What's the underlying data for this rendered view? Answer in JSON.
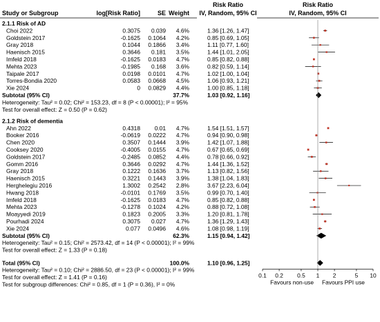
{
  "chart_data": {
    "type": "forest",
    "header": {
      "col_label_top": "Risk Ratio",
      "col_label_top_right": "Risk Ratio",
      "study": "Study or Subgroup",
      "log_rr": "log[Risk Ratio]",
      "se": "SE",
      "weight": "Weight",
      "ci": "IV, Random, 95% CI",
      "plot_ci": "IV, Random, 95% CI"
    },
    "axis": {
      "scale": "log",
      "ticks": [
        0.1,
        0.2,
        0.5,
        1,
        2,
        5,
        10
      ],
      "tick_labels": [
        "0.1",
        "0.2",
        "0.5",
        "1",
        "2",
        "5",
        "10"
      ],
      "favours_left": "Favours non-use",
      "favours_right": "Favours PPI use"
    },
    "groups": [
      {
        "title": "2.1.1 Risk of AD",
        "studies": [
          {
            "name": "Choi 2022",
            "log_rr": "0.3075",
            "se": "0.039",
            "weight": "4.6%",
            "ci_text": "1.36 [1.26, 1.47]",
            "rr": 1.36,
            "lo": 1.26,
            "hi": 1.47
          },
          {
            "name": "Goldstein 2017",
            "log_rr": "-0.1625",
            "se": "0.1064",
            "weight": "4.2%",
            "ci_text": "0.85 [0.69, 1.05]",
            "rr": 0.85,
            "lo": 0.69,
            "hi": 1.05
          },
          {
            "name": "Gray 2018",
            "log_rr": "0.1044",
            "se": "0.1866",
            "weight": "3.4%",
            "ci_text": "1.11 [0.77, 1.60]",
            "rr": 1.11,
            "lo": 0.77,
            "hi": 1.6
          },
          {
            "name": "Haenisch 2015",
            "log_rr": "0.3646",
            "se": "0.181",
            "weight": "3.5%",
            "ci_text": "1.44 [1.01, 2.05]",
            "rr": 1.44,
            "lo": 1.01,
            "hi": 2.05
          },
          {
            "name": "Imfeld 2018",
            "log_rr": "-0.1625",
            "se": "0.0183",
            "weight": "4.7%",
            "ci_text": "0.85 [0.82, 0.88]",
            "rr": 0.85,
            "lo": 0.82,
            "hi": 0.88
          },
          {
            "name": "Mehta 2023",
            "log_rr": "-0.1985",
            "se": "0.168",
            "weight": "3.6%",
            "ci_text": "0.82 [0.59, 1.14]",
            "rr": 0.82,
            "lo": 0.59,
            "hi": 1.14
          },
          {
            "name": "Taipale 2017",
            "log_rr": "0.0198",
            "se": "0.0101",
            "weight": "4.7%",
            "ci_text": "1.02 [1.00, 1.04]",
            "rr": 1.02,
            "lo": 1.0,
            "hi": 1.04
          },
          {
            "name": "Torres-Bondia 2020",
            "log_rr": "0.0583",
            "se": "0.0668",
            "weight": "4.5%",
            "ci_text": "1.06 [0.93, 1.21]",
            "rr": 1.06,
            "lo": 0.93,
            "hi": 1.21
          },
          {
            "name": "Xie 2024",
            "log_rr": "0",
            "se": "0.0829",
            "weight": "4.4%",
            "ci_text": "1.00 [0.85, 1.18]",
            "rr": 1.0,
            "lo": 0.85,
            "hi": 1.18
          }
        ],
        "subtotal": {
          "label": "Subtotal (95% CI)",
          "weight": "37.7%",
          "ci_text": "1.03 [0.92, 1.16]",
          "rr": 1.03,
          "lo": 0.92,
          "hi": 1.16
        },
        "heterogeneity": "Heterogeneity: Tau² = 0.02; Chi² = 153.23, df = 8 (P < 0.00001); I² = 95%",
        "overall_effect": "Test for overall effect: Z = 0.50 (P = 0.62)"
      },
      {
        "title": "2.1.2 Risk of dementia",
        "studies": [
          {
            "name": "Ahn 2022",
            "log_rr": "0.4318",
            "se": "0.01",
            "weight": "4.7%",
            "ci_text": "1.54 [1.51, 1.57]",
            "rr": 1.54,
            "lo": 1.51,
            "hi": 1.57
          },
          {
            "name": "Booker 2016",
            "log_rr": "-0.0619",
            "se": "0.0222",
            "weight": "4.7%",
            "ci_text": "0.94 [0.90, 0.98]",
            "rr": 0.94,
            "lo": 0.9,
            "hi": 0.98
          },
          {
            "name": "Chen 2020",
            "log_rr": "0.3507",
            "se": "0.1444",
            "weight": "3.9%",
            "ci_text": "1.42 [1.07, 1.88]",
            "rr": 1.42,
            "lo": 1.07,
            "hi": 1.88
          },
          {
            "name": "Cooksey 2020",
            "log_rr": "-0.4005",
            "se": "0.0155",
            "weight": "4.7%",
            "ci_text": "0.67 [0.65, 0.69]",
            "rr": 0.67,
            "lo": 0.65,
            "hi": 0.69
          },
          {
            "name": "Goldstein 2017",
            "log_rr": "-0.2485",
            "se": "0.0852",
            "weight": "4.4%",
            "ci_text": "0.78 [0.66, 0.92]",
            "rr": 0.78,
            "lo": 0.66,
            "hi": 0.92
          },
          {
            "name": "Gomm 2016",
            "log_rr": "0.3646",
            "se": "0.0292",
            "weight": "4.7%",
            "ci_text": "1.44 [1.36, 1.52]",
            "rr": 1.44,
            "lo": 1.36,
            "hi": 1.52
          },
          {
            "name": "Gray 2018",
            "log_rr": "0.1222",
            "se": "0.1636",
            "weight": "3.7%",
            "ci_text": "1.13 [0.82, 1.56]",
            "rr": 1.13,
            "lo": 0.82,
            "hi": 1.56
          },
          {
            "name": "Haenisch 2015",
            "log_rr": "0.3221",
            "se": "0.1443",
            "weight": "3.9%",
            "ci_text": "1.38 [1.04, 1.83]",
            "rr": 1.38,
            "lo": 1.04,
            "hi": 1.83
          },
          {
            "name": "Herghelegiu 2016",
            "log_rr": "1.3002",
            "se": "0.2542",
            "weight": "2.8%",
            "ci_text": "3.67 [2.23, 6.04]",
            "rr": 3.67,
            "lo": 2.23,
            "hi": 6.04
          },
          {
            "name": "Hwang 2018",
            "log_rr": "-0.0101",
            "se": "0.1769",
            "weight": "3.5%",
            "ci_text": "0.99 [0.70, 1.40]",
            "rr": 0.99,
            "lo": 0.7,
            "hi": 1.4
          },
          {
            "name": "Imfeld 2018",
            "log_rr": "-0.1625",
            "se": "0.0183",
            "weight": "4.7%",
            "ci_text": "0.85 [0.82, 0.88]",
            "rr": 0.85,
            "lo": 0.82,
            "hi": 0.88
          },
          {
            "name": "Mehta 2023",
            "log_rr": "-0.1278",
            "se": "0.1024",
            "weight": "4.2%",
            "ci_text": "0.88 [0.72, 1.08]",
            "rr": 0.88,
            "lo": 0.72,
            "hi": 1.08
          },
          {
            "name": "Moayyedi 2019",
            "log_rr": "0.1823",
            "se": "0.2005",
            "weight": "3.3%",
            "ci_text": "1.20 [0.81, 1.78]",
            "rr": 1.2,
            "lo": 0.81,
            "hi": 1.78
          },
          {
            "name": "Pourhadi 2024",
            "log_rr": "0.3075",
            "se": "0.027",
            "weight": "4.7%",
            "ci_text": "1.36 [1.29, 1.43]",
            "rr": 1.36,
            "lo": 1.29,
            "hi": 1.43
          },
          {
            "name": "Xie 2024",
            "log_rr": "0.077",
            "se": "0.0496",
            "weight": "4.6%",
            "ci_text": "1.08 [0.98, 1.19]",
            "rr": 1.08,
            "lo": 0.98,
            "hi": 1.19
          }
        ],
        "subtotal": {
          "label": "Subtotal (95% CI)",
          "weight": "62.3%",
          "ci_text": "1.15 [0.94, 1.42]",
          "rr": 1.15,
          "lo": 0.94,
          "hi": 1.42
        },
        "heterogeneity": "Heterogeneity: Tau² = 0.15; Chi² = 2573.42, df = 14 (P < 0.00001); I² = 99%",
        "overall_effect": "Test for overall effect: Z = 1.33 (P = 0.18)"
      }
    ],
    "total": {
      "label": "Total (95% CI)",
      "weight": "100.0%",
      "ci_text": "1.10 [0.96, 1.25]",
      "rr": 1.1,
      "lo": 0.96,
      "hi": 1.25,
      "heterogeneity": "Heterogeneity: Tau² = 0.10; Chi² = 2886.50, df = 23 (P < 0.00001); I² = 99%",
      "overall_effect": "Test for overall effect: Z = 1.41 (P = 0.16)",
      "subgroup_diff": "Test for subgroup differences: Chi² = 0.85, df = 1 (P = 0.36), I² = 0%"
    },
    "colors": {
      "study_marker": "#c0392b",
      "diamond": "#000000",
      "line": "#000000",
      "grid_line": "#888888"
    }
  }
}
